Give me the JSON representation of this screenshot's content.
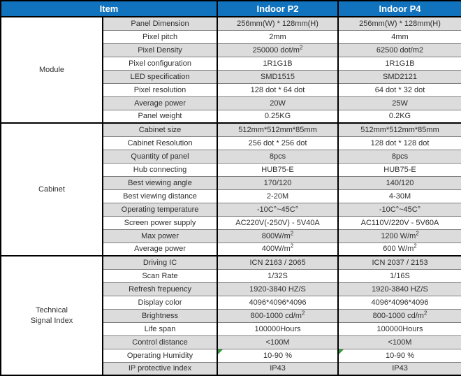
{
  "colors": {
    "header_bg": "#1173BD",
    "header_text": "#FFFFFF",
    "stripe": "#DCDCDC",
    "grid_strong": "#000000",
    "grid_light": "#7F7F7F",
    "cell_text": "#2E2E2E",
    "error_marker_green": "#2E9B3D"
  },
  "table": {
    "header": {
      "item": "Item",
      "p2": "Indoor P2",
      "p4": "Indoor P4"
    },
    "groups": [
      {
        "label": "Module",
        "rows": [
          {
            "item": "Panel Dimension",
            "p2": "256mm(W)  * 128mm(H)",
            "p4": "256mm(W) * 128mm(H)"
          },
          {
            "item": "Pixel pitch",
            "p2": "2mm",
            "p4": "4mm"
          },
          {
            "item": "Pixel Density",
            "p2": "250000 dot/m",
            "p2_sup": "2",
            "p4": "62500 dot/m2"
          },
          {
            "item": "Pixel configuration",
            "p2": "1R1G1B",
            "p4": "1R1G1B"
          },
          {
            "item": "LED specification",
            "p2": "SMD1515",
            "p4": "SMD2121"
          },
          {
            "item": "Pixel resolution",
            "p2": "128 dot * 64 dot",
            "p4": "64 dot * 32 dot"
          },
          {
            "item": "Average power",
            "p2": "20W",
            "p4": "25W"
          },
          {
            "item": "Panel weight",
            "p2": "0.25KG",
            "p4": "0.2KG"
          }
        ]
      },
      {
        "label": "Cabinet",
        "rows": [
          {
            "item": "Cabinet size",
            "p2": "512mm*512mm*85mm",
            "p4": "512mm*512mm*85mm"
          },
          {
            "item": "Cabinet Resolution",
            "p2": "256 dot * 256 dot",
            "p4": "128 dot * 128 dot"
          },
          {
            "item": "Quantity of panel",
            "p2": "8pcs",
            "p4": "8pcs"
          },
          {
            "item": "Hub connecting",
            "p2": "HUB75-E",
            "p4": "HUB75-E"
          },
          {
            "item": "Best viewing angle",
            "p2": "170/120",
            "p4": "140/120"
          },
          {
            "item": "Best viewing distance",
            "p2": "2-20M",
            "p4": "4-30M"
          },
          {
            "item": "Operating temperature",
            "p2": "-10C°~45C°",
            "p4": "-10C°~45C°"
          },
          {
            "item": "Screen power supply",
            "p2": "AC220V(-250V) - 5V40A",
            "p4": "AC110V/220V - 5V60A"
          },
          {
            "item": "Max power",
            "p2": "800W/m",
            "p2_sup": "2",
            "p4": "1200 W/m",
            "p4_sup": "2"
          },
          {
            "item": "Average power",
            "p2": "400W/m",
            "p2_sup": "2",
            "p4": "600 W/m",
            "p4_sup": "2"
          }
        ]
      },
      {
        "label": "Technical\nSignal Index",
        "rows": [
          {
            "item": "Driving IC",
            "p2": "ICN 2163 / 2065",
            "p4": "ICN 2037 / 2153"
          },
          {
            "item": "Scan Rate",
            "p2": "1/32S",
            "p4": "1/16S"
          },
          {
            "item": "Refresh frepuency",
            "p2": "1920-3840 HZ/S",
            "p4": "1920-3840 HZ/S"
          },
          {
            "item": "Display color",
            "p2": "4096*4096*4096",
            "p4": "4096*4096*4096"
          },
          {
            "item": "Brightness",
            "p2": "800-1000 cd/m",
            "p2_sup": "2",
            "p4": "800-1000 cd/m",
            "p4_sup": "2"
          },
          {
            "item": "Life span",
            "p2": "100000Hours",
            "p4": "100000Hours"
          },
          {
            "item": "Control distance",
            "p2": "<100M",
            "p4": "<100M"
          },
          {
            "item": "Operating Humidity",
            "p2": "10-90 %",
            "p4": "10-90 %",
            "marker": true
          },
          {
            "item": "IP protective index",
            "p2": "IP43",
            "p4": "IP43"
          }
        ]
      }
    ]
  }
}
